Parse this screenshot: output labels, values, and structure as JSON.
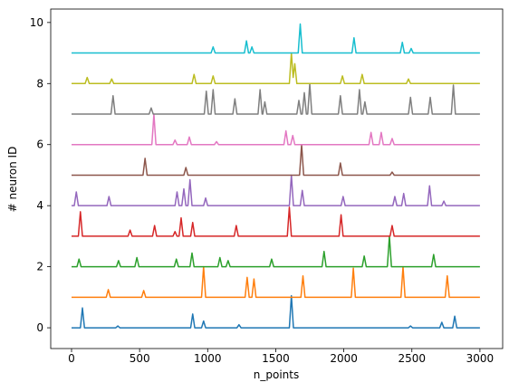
{
  "chart_data": {
    "type": "line",
    "x_label": "n_points",
    "y_label": "# neuron ID",
    "xlim": [
      -153,
      3167
    ],
    "ylim": [
      -0.68,
      10.44
    ],
    "xticks": [
      0,
      500,
      1000,
      1500,
      2000,
      2500,
      3000
    ],
    "yticks": [
      0,
      2,
      4,
      6,
      8,
      10
    ],
    "series": [
      {
        "color": "#1f77b4",
        "x": [
          0,
          65,
          80,
          95,
          325,
          340,
          355,
          875,
          890,
          905,
          955,
          970,
          985,
          1215,
          1230,
          1245,
          1600,
          1615,
          1630,
          2475,
          2490,
          2505,
          2705,
          2720,
          2735,
          2800,
          2815,
          2830,
          3000
        ],
        "values": [
          0,
          0,
          0.65,
          0,
          0,
          0.06,
          0,
          0,
          0.45,
          0,
          0,
          0.22,
          0,
          0,
          0.1,
          0,
          0,
          1.05,
          0,
          0,
          0.06,
          0,
          0,
          0.18,
          0,
          0,
          0.38,
          0,
          0
        ]
      },
      {
        "color": "#ff7f0e",
        "x": [
          0,
          255,
          270,
          285,
          515,
          530,
          545,
          955,
          970,
          985,
          1275,
          1290,
          1305,
          1325,
          1340,
          1355,
          1685,
          1700,
          1715,
          2055,
          2070,
          2085,
          2420,
          2435,
          2450,
          2745,
          2760,
          2775,
          3000
        ],
        "values": [
          1,
          1,
          1.25,
          1,
          1,
          1.22,
          1,
          1,
          2.0,
          1,
          1,
          1.65,
          1,
          1,
          1.6,
          1,
          1,
          1.7,
          1,
          1,
          1.95,
          1,
          1,
          2.0,
          1,
          1,
          1.7,
          1,
          1
        ]
      },
      {
        "color": "#2ca02c",
        "x": [
          0,
          40,
          55,
          70,
          330,
          345,
          360,
          465,
          480,
          495,
          755,
          770,
          785,
          870,
          885,
          900,
          1075,
          1090,
          1105,
          1135,
          1150,
          1165,
          1455,
          1470,
          1485,
          1840,
          1855,
          1870,
          2135,
          2150,
          2165,
          2320,
          2335,
          2350,
          2645,
          2660,
          2675,
          3000
        ],
        "values": [
          2,
          2,
          2.25,
          2,
          2,
          2.2,
          2,
          2,
          2.3,
          2,
          2,
          2.25,
          2,
          2,
          2.45,
          2,
          2,
          2.3,
          2,
          2,
          2.2,
          2,
          2,
          2.25,
          2,
          2,
          2.5,
          2,
          2,
          2.35,
          2,
          2,
          3.0,
          2,
          2,
          2.4,
          2,
          2
        ]
      },
      {
        "color": "#d62728",
        "x": [
          0,
          50,
          65,
          80,
          415,
          430,
          445,
          595,
          610,
          625,
          745,
          760,
          775,
          790,
          805,
          820,
          875,
          890,
          905,
          1195,
          1210,
          1225,
          1585,
          1600,
          1615,
          1965,
          1980,
          1995,
          2340,
          2355,
          2370,
          3000
        ],
        "values": [
          3,
          3,
          3.8,
          3,
          3,
          3.2,
          3,
          3,
          3.35,
          3,
          3,
          3.15,
          3,
          3,
          3.6,
          3,
          3,
          3.45,
          3,
          3,
          3.35,
          3,
          3,
          3.95,
          3,
          3,
          3.7,
          3,
          3,
          3.35,
          3,
          3
        ]
      },
      {
        "color": "#9467bd",
        "x": [
          0,
          20,
          35,
          50,
          260,
          275,
          290,
          760,
          775,
          790,
          810,
          825,
          840,
          855,
          870,
          885,
          970,
          985,
          1000,
          1600,
          1615,
          1630,
          1680,
          1695,
          1710,
          1980,
          1995,
          2010,
          2360,
          2375,
          2390,
          2425,
          2440,
          2455,
          2615,
          2630,
          2645,
          2720,
          2735,
          2750,
          3000
        ],
        "values": [
          4,
          4,
          4.45,
          4,
          4,
          4.3,
          4,
          4,
          4.45,
          4,
          4,
          4.55,
          4,
          4,
          4.85,
          4,
          4,
          4.25,
          4,
          4,
          5.0,
          4,
          4,
          4.5,
          4,
          4,
          4.3,
          4,
          4,
          4.3,
          4,
          4,
          4.4,
          4,
          4,
          4.65,
          4,
          4,
          4.15,
          4,
          4
        ]
      },
      {
        "color": "#8c564b",
        "x": [
          0,
          525,
          540,
          555,
          825,
          840,
          855,
          1675,
          1690,
          1705,
          1960,
          1975,
          1990,
          2340,
          2355,
          2370,
          3000
        ],
        "values": [
          5,
          5,
          5.55,
          5,
          5,
          5.25,
          5,
          5,
          6.0,
          5,
          5,
          5.4,
          5,
          5,
          5.1,
          5,
          5
        ]
      },
      {
        "color": "#e377c2",
        "x": [
          0,
          590,
          605,
          620,
          745,
          760,
          775,
          850,
          865,
          880,
          1050,
          1065,
          1080,
          1560,
          1575,
          1590,
          1610,
          1625,
          1640,
          2185,
          2200,
          2215,
          2260,
          2275,
          2290,
          2340,
          2355,
          2370,
          3000
        ],
        "values": [
          6,
          6,
          7.0,
          6,
          6,
          6.15,
          6,
          6,
          6.25,
          6,
          6,
          6.1,
          6,
          6,
          6.45,
          6,
          6,
          6.3,
          6,
          6,
          6.4,
          6,
          6,
          6.4,
          6,
          6,
          6.2,
          6,
          6
        ]
      },
      {
        "color": "#7f7f7f",
        "x": [
          0,
          290,
          305,
          320,
          570,
          585,
          600,
          975,
          990,
          1005,
          1025,
          1040,
          1055,
          1185,
          1200,
          1215,
          1370,
          1385,
          1400,
          1405,
          1420,
          1435,
          1655,
          1670,
          1685,
          1695,
          1710,
          1725,
          1735,
          1750,
          1765,
          1960,
          1975,
          1990,
          2100,
          2115,
          2130,
          2140,
          2155,
          2170,
          2475,
          2490,
          2505,
          2620,
          2635,
          2650,
          2790,
          2805,
          2820,
          3000
        ],
        "values": [
          7,
          7,
          7.6,
          7,
          7,
          7.2,
          7,
          7,
          7.75,
          7,
          7,
          7.8,
          7,
          7,
          7.5,
          7,
          7,
          7.8,
          7,
          7,
          7.4,
          7,
          7,
          7.45,
          7,
          7,
          7.7,
          7,
          7,
          8.0,
          7,
          7,
          7.6,
          7,
          7,
          7.8,
          7,
          7,
          7.4,
          7,
          7,
          7.55,
          7,
          7,
          7.55,
          7,
          7,
          7.95,
          7,
          7
        ]
      },
      {
        "color": "#bcbd22",
        "x": [
          0,
          100,
          115,
          130,
          280,
          295,
          310,
          885,
          900,
          915,
          1025,
          1040,
          1055,
          1600,
          1615,
          1628,
          1640,
          1655,
          1975,
          1990,
          2005,
          2120,
          2135,
          2150,
          2460,
          2475,
          2490,
          3000
        ],
        "values": [
          8,
          8,
          8.2,
          8,
          8,
          8.15,
          8,
          8,
          8.3,
          8,
          8,
          8.25,
          8,
          8,
          9.0,
          8.2,
          8.65,
          8,
          8,
          8.25,
          8,
          8,
          8.3,
          8,
          8,
          8.15,
          8,
          8
        ]
      },
      {
        "color": "#17becf",
        "x": [
          0,
          1025,
          1040,
          1055,
          1270,
          1285,
          1300,
          1310,
          1325,
          1340,
          1665,
          1680,
          1695,
          2060,
          2075,
          2090,
          2415,
          2430,
          2445,
          2480,
          2495,
          2510,
          3000
        ],
        "values": [
          9,
          9,
          9.2,
          9,
          9,
          9.4,
          9,
          9,
          9.2,
          9,
          9,
          9.95,
          9,
          9,
          9.5,
          9,
          9,
          9.35,
          9,
          9,
          9.15,
          9,
          9
        ]
      }
    ]
  }
}
